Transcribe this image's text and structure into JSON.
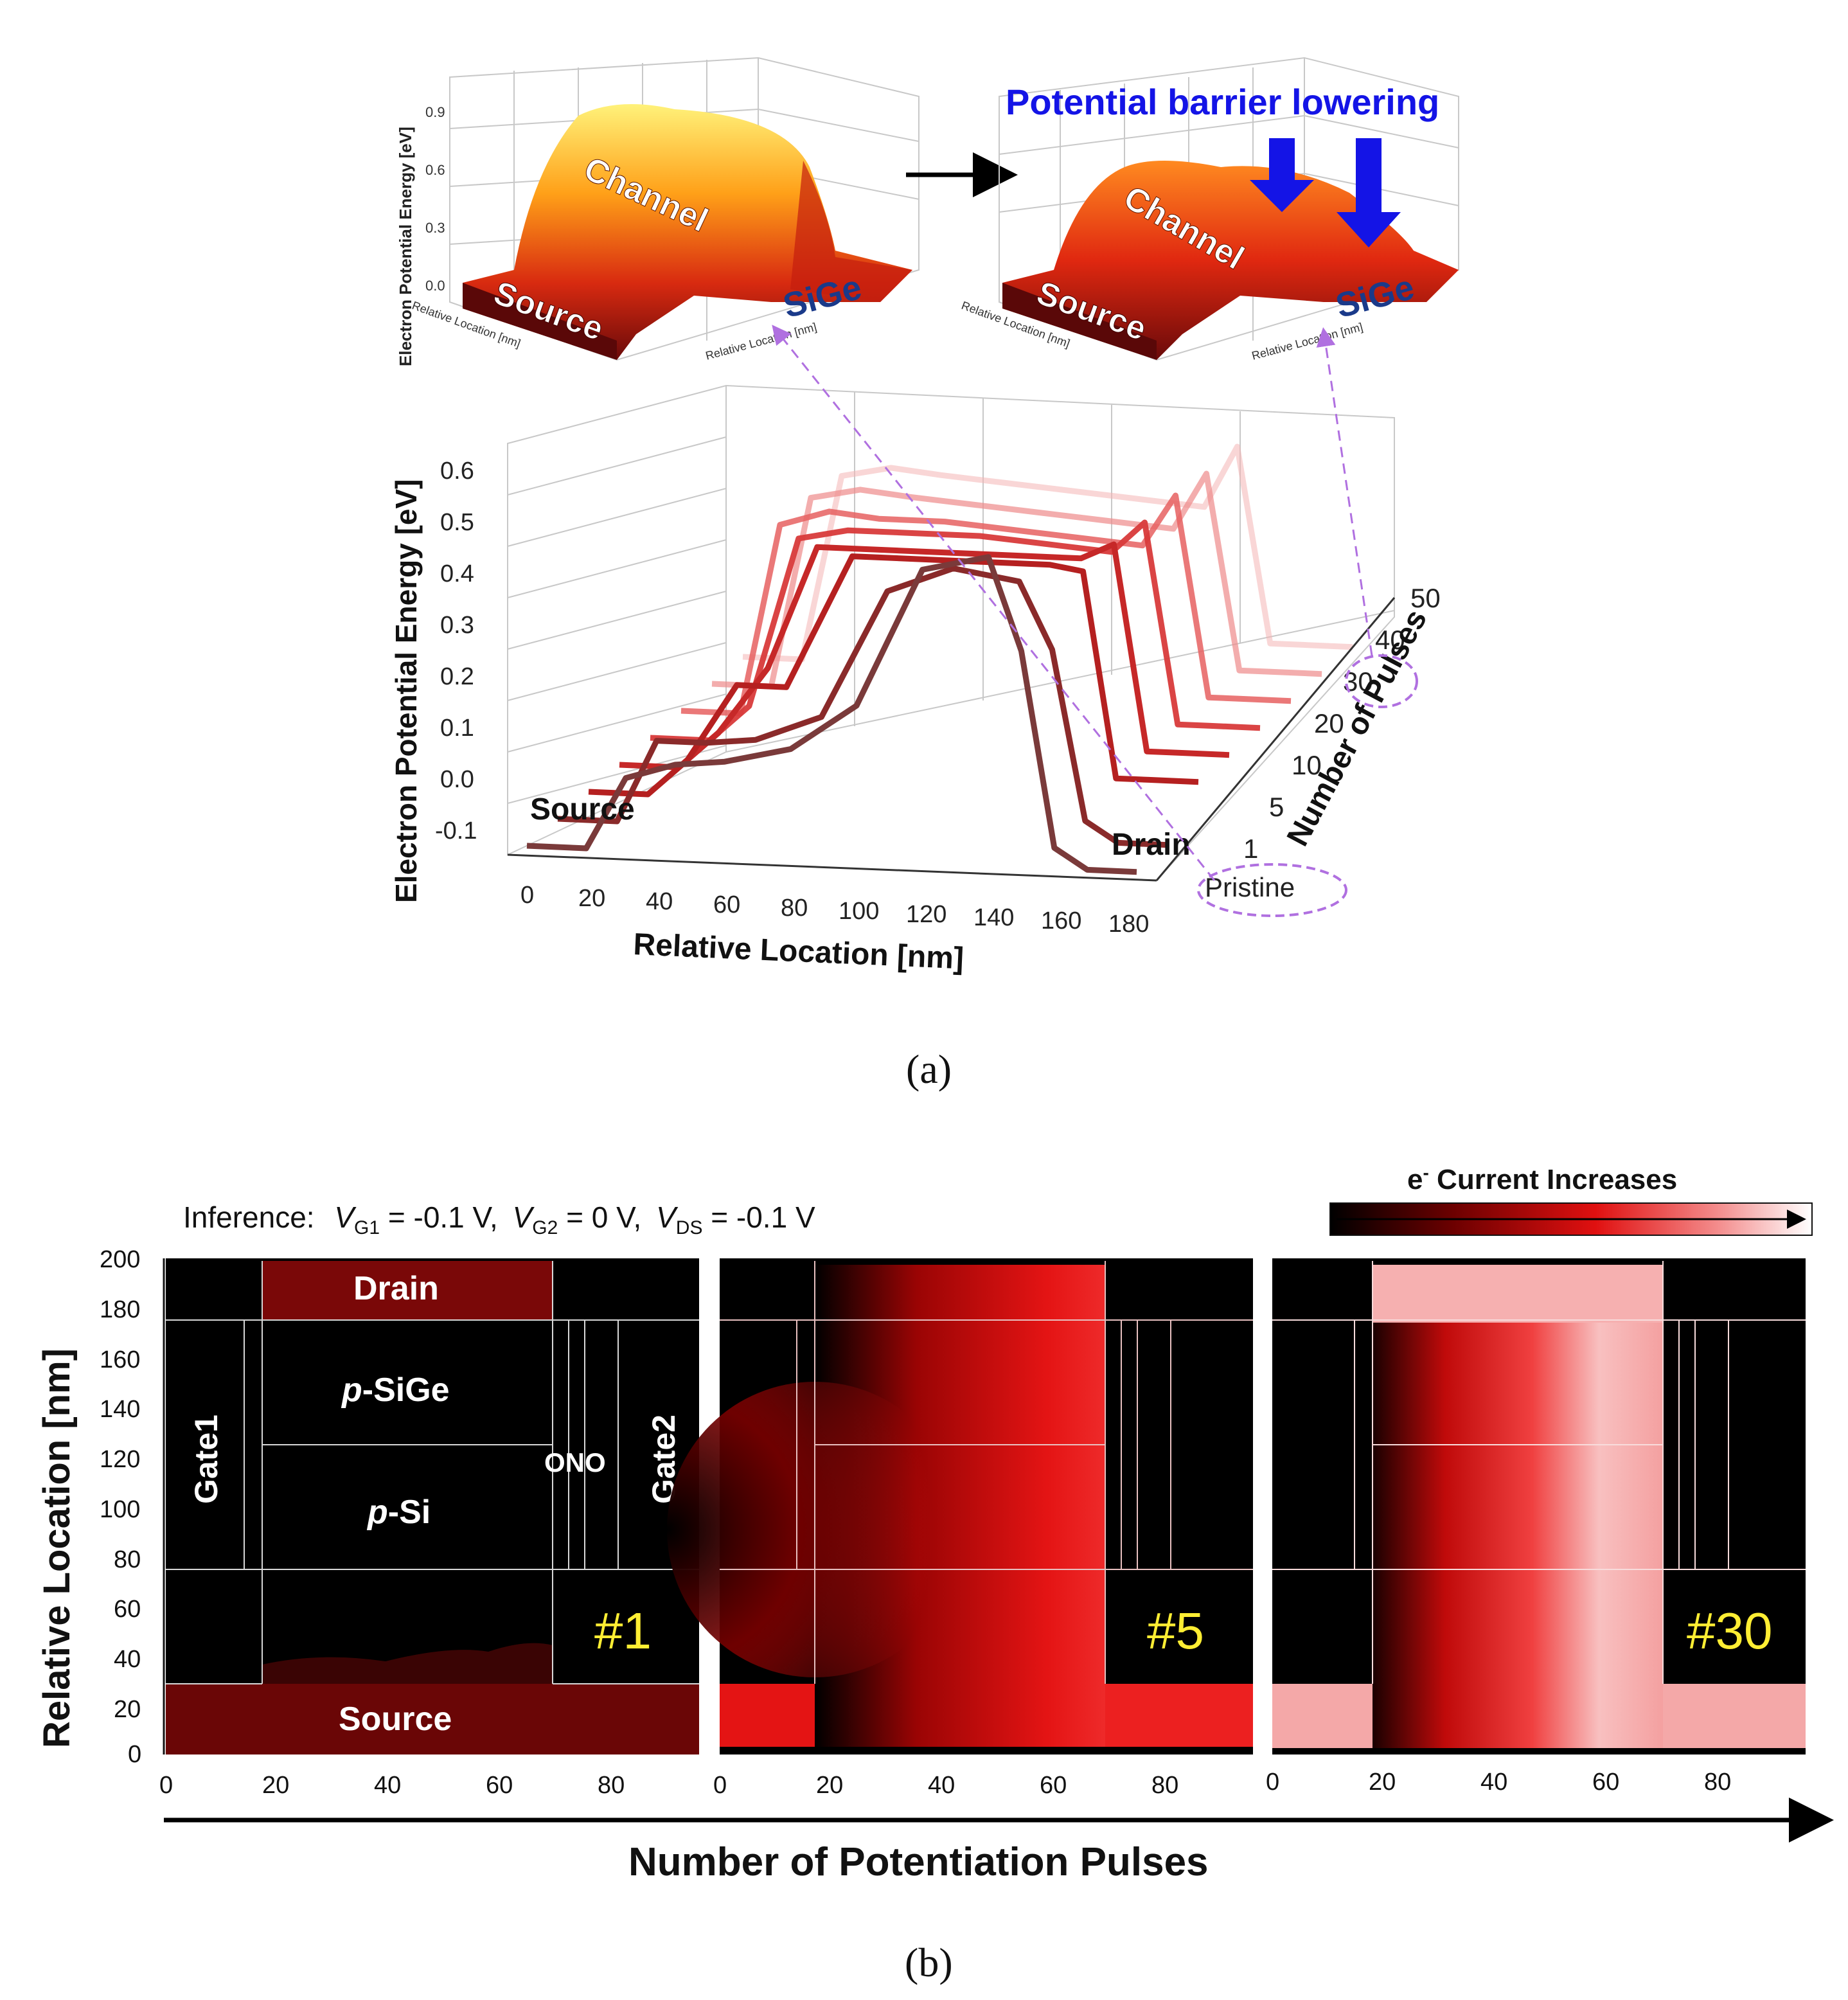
{
  "panel_a": {
    "caption": "(a)",
    "inset_left": {
      "z_label": "Electron Potential Energy [eV]",
      "z_ticks": [
        "0.9",
        "0.6",
        "0.3",
        "0.0"
      ],
      "x_label": "Relative Location [nm]",
      "y_label": "Relative Location [nm]",
      "region_channel": "Channel",
      "region_source": "Source",
      "region_sige": "SiGe"
    },
    "inset_right": {
      "title": "Potential barrier lowering",
      "region_channel": "Channel",
      "region_source": "Source",
      "region_sige": "SiGe",
      "x_label": "Relative Location [nm]",
      "y_label": "Relative Location [nm]"
    },
    "source_label": "Source",
    "drain_label": "Drain"
  },
  "panel_b": {
    "caption": "(b)",
    "inference_prefix": "Inference:",
    "v_g1": "V",
    "v_g1_sub": "G1",
    "v_g1_val": " = -0.1 V,",
    "v_g2": "V",
    "v_g2_sub": "G2",
    "v_g2_val": " = 0 V,",
    "v_ds": "V",
    "v_ds_sub": "DS",
    "v_ds_val": " = -0.1 V",
    "colorbar_label_e": "e",
    "colorbar_label_sup": "-",
    "colorbar_label_rest": " Current Increases",
    "y_label": "Relative Location [nm]",
    "y_ticks": [
      "200",
      "180",
      "160",
      "140",
      "120",
      "100",
      "80",
      "60",
      "40",
      "20",
      "0"
    ],
    "x_ticks": [
      "0",
      "20",
      "40",
      "60",
      "80"
    ],
    "bottom_axis_label": "Number of Potentiation Pulses",
    "regions": {
      "drain": "Drain",
      "p_sige_italic": "p",
      "p_sige_rest": "-SiGe",
      "p_si_italic": "p",
      "p_si_rest": "-Si",
      "source": "Source",
      "gate1": "Gate1",
      "gate2": "Gate2",
      "ono": "ONO"
    },
    "pulse_labels": [
      "#1",
      "#5",
      "#30"
    ]
  },
  "chart_data": {
    "type": "line",
    "title": "",
    "xlabel": "Relative Location [nm]",
    "ylabel": "Electron Potential Energy [eV]",
    "zlabel": "Number of Pulses",
    "x_ticks": [
      "0",
      "20",
      "40",
      "60",
      "80",
      "100",
      "120",
      "140",
      "160",
      "180"
    ],
    "y_ticks": [
      "0.6",
      "0.5",
      "0.4",
      "0.3",
      "0.2",
      "0.1",
      "0.0",
      "-0.1"
    ],
    "z_ticks": [
      "Pristine",
      "1",
      "5",
      "10",
      "20",
      "30",
      "40",
      "50"
    ],
    "ylim": [
      -0.1,
      0.6
    ],
    "xlim": [
      0,
      190
    ],
    "x": [
      0,
      18,
      30,
      45,
      60,
      80,
      100,
      120,
      140,
      150,
      160,
      170,
      185
    ],
    "series": [
      {
        "name": "Pristine",
        "values": [
          -0.12,
          -0.12,
          0.02,
          0.05,
          0.06,
          0.09,
          0.18,
          0.45,
          0.48,
          0.3,
          -0.08,
          -0.12,
          -0.12
        ]
      },
      {
        "name": "1",
        "values": [
          -0.12,
          -0.12,
          0.04,
          0.04,
          0.05,
          0.1,
          0.35,
          0.4,
          0.38,
          0.25,
          -0.08,
          -0.12,
          -0.12
        ]
      },
      {
        "name": "5",
        "values": [
          -0.12,
          -0.12,
          -0.05,
          0.1,
          0.1,
          0.36,
          0.36,
          0.36,
          0.36,
          0.35,
          -0.05,
          -0.05,
          -0.05
        ]
      },
      {
        "name": "10",
        "values": [
          -0.12,
          -0.12,
          -0.05,
          0.08,
          0.32,
          0.32,
          0.32,
          0.32,
          0.32,
          0.35,
          -0.05,
          -0.05,
          -0.05
        ]
      },
      {
        "name": "20",
        "values": [
          -0.12,
          -0.12,
          -0.05,
          0.28,
          0.3,
          0.3,
          0.3,
          0.29,
          0.28,
          0.34,
          -0.05,
          -0.05,
          -0.05
        ]
      },
      {
        "name": "30",
        "values": [
          -0.12,
          -0.12,
          0.25,
          0.28,
          0.27,
          0.27,
          0.26,
          0.25,
          0.24,
          0.34,
          -0.05,
          -0.05,
          -0.05
        ]
      },
      {
        "name": "40",
        "values": [
          -0.12,
          -0.12,
          0.25,
          0.27,
          0.26,
          0.25,
          0.24,
          0.23,
          0.22,
          0.33,
          -0.05,
          -0.05,
          -0.05
        ]
      },
      {
        "name": "50",
        "values": [
          -0.12,
          -0.12,
          0.24,
          0.26,
          0.25,
          0.24,
          0.23,
          0.22,
          0.21,
          0.33,
          -0.05,
          -0.05,
          -0.05
        ]
      }
    ]
  },
  "colors": {
    "black": "#000000",
    "dark_red": "#5a0a0a",
    "red": "#e01010",
    "pink": "#f2a8a8",
    "blue_title": "#1414e6",
    "lilac": "#b070e0",
    "yellow_label": "#ffee33"
  }
}
